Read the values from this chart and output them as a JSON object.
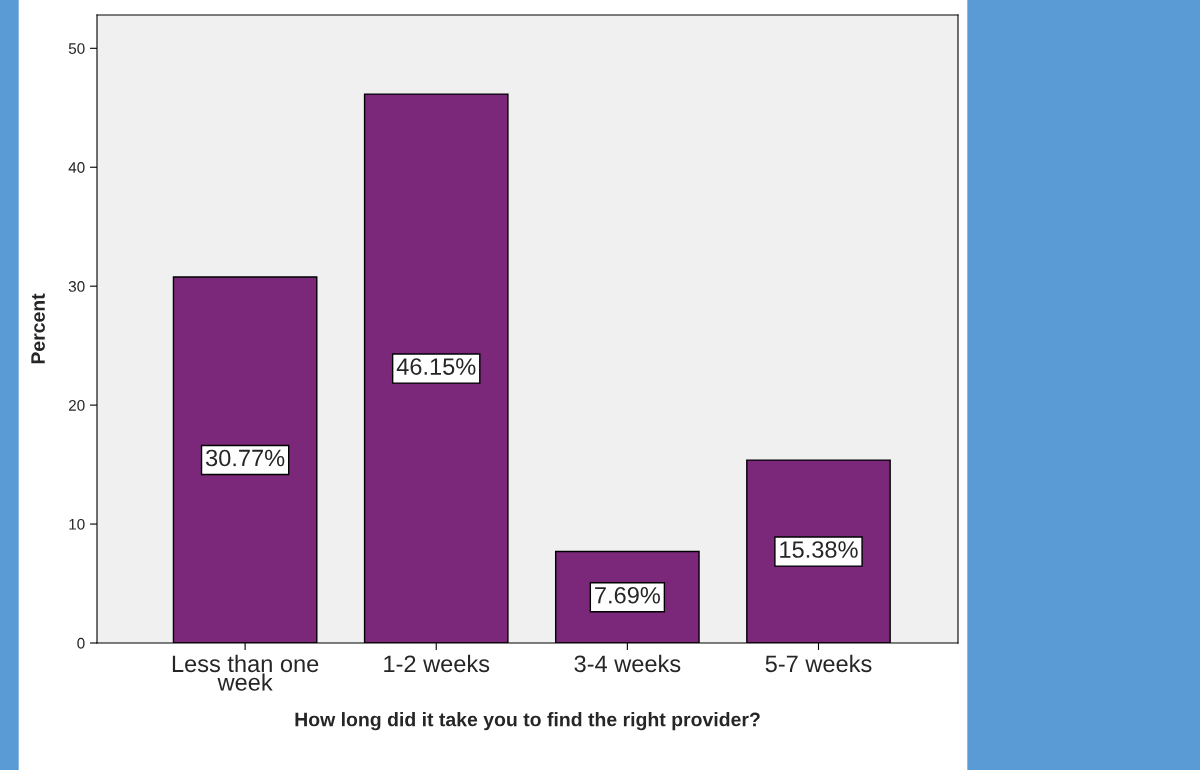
{
  "chart_data": {
    "type": "bar",
    "xlabel": "How long did it take you to find the right provider?",
    "ylabel": "Percent",
    "categories": [
      "Less than one week",
      "1-2 weeks",
      "3-4 weeks",
      "5-7 weeks"
    ],
    "values": [
      30.77,
      46.15,
      7.69,
      15.38
    ],
    "value_labels": [
      "30.77%",
      "46.15%",
      "7.69%",
      "15.38%"
    ],
    "color": "#7b287b",
    "ylim": [
      0,
      52.8
    ],
    "yticks": [
      0,
      10,
      20,
      30,
      40,
      50
    ],
    "grid": false
  }
}
